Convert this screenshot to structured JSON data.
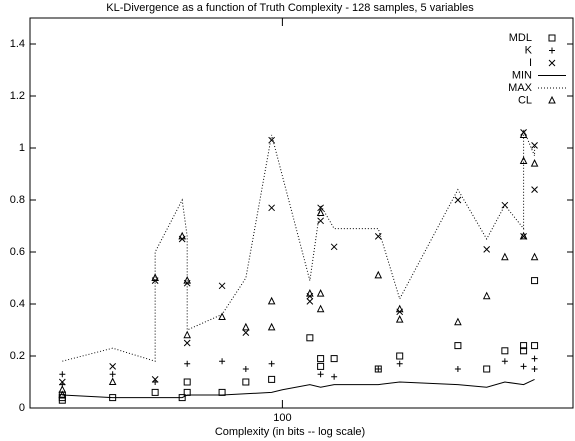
{
  "chart_data": {
    "type": "scatter",
    "title": "KL-Divergence as a function of Truth Complexity - 128 samples, 5 variables",
    "x_label": "Complexity (in bits -- log scale)",
    "xlim": [
      30,
      400
    ],
    "xscale": "log",
    "xticks": [
      100
    ],
    "ylim": [
      0,
      1.5
    ],
    "yticks": [
      0,
      0.2,
      0.4,
      0.6,
      0.8,
      1,
      1.2,
      1.4
    ],
    "legend": "top-right",
    "series": [
      {
        "name": "MDL",
        "marker": "square",
        "color": "#000000",
        "x": [
          35,
          35,
          35,
          44.5,
          54.5,
          62,
          63.5,
          63.5,
          75,
          84,
          95,
          114,
          120,
          120,
          128,
          158,
          175,
          231,
          265,
          289,
          316,
          316,
          333,
          333
        ],
        "values": [
          0.03,
          0.04,
          0.05,
          0.04,
          0.06,
          0.04,
          0.1,
          0.06,
          0.06,
          0.1,
          0.11,
          0.27,
          0.19,
          0.16,
          0.19,
          0.15,
          0.2,
          0.24,
          0.15,
          0.22,
          0.24,
          0.22,
          0.49,
          0.24
        ]
      },
      {
        "name": "K",
        "marker": "plus",
        "color": "#000000",
        "x": [
          35,
          35,
          44.5,
          54.5,
          63.5,
          75,
          84,
          95,
          120,
          128,
          158,
          175,
          231,
          289,
          316,
          333,
          333
        ],
        "values": [
          0.13,
          0.09,
          0.13,
          0.1,
          0.17,
          0.18,
          0.15,
          0.17,
          0.13,
          0.12,
          0.15,
          0.17,
          0.15,
          0.18,
          0.16,
          0.19,
          0.15
        ]
      },
      {
        "name": "I",
        "marker": "cross",
        "color": "#000000",
        "x": [
          35,
          44.5,
          54.5,
          54.5,
          62,
          63.5,
          63.5,
          75,
          84,
          95,
          95,
          114,
          114,
          120,
          120,
          128,
          158,
          175,
          231,
          265,
          289,
          316,
          316,
          333,
          333
        ],
        "values": [
          0.1,
          0.16,
          0.49,
          0.11,
          0.65,
          0.48,
          0.25,
          0.47,
          0.29,
          1.03,
          0.77,
          0.43,
          0.41,
          0.77,
          0.72,
          0.62,
          0.66,
          0.37,
          0.8,
          0.61,
          0.78,
          1.06,
          0.66,
          1.01,
          0.84
        ]
      },
      {
        "name": "MIN",
        "line": "solid",
        "color": "#000000",
        "x": [
          35,
          44.5,
          54.5,
          62,
          63.5,
          75,
          95,
          100,
          114,
          120,
          128,
          158,
          175,
          231,
          265,
          289,
          316,
          333
        ],
        "values": [
          0.05,
          0.04,
          0.04,
          0.04,
          0.05,
          0.05,
          0.06,
          0.07,
          0.09,
          0.08,
          0.09,
          0.09,
          0.1,
          0.09,
          0.08,
          0.1,
          0.09,
          0.11
        ]
      },
      {
        "name": "MAX",
        "line": "dotted",
        "color": "#000000",
        "x": [
          35,
          44.5,
          54.5,
          54.5,
          62,
          63.5,
          63.5,
          75,
          84,
          95,
          114,
          120,
          128,
          158,
          175,
          231,
          265,
          289,
          316,
          316,
          333,
          333
        ],
        "values": [
          0.18,
          0.23,
          0.18,
          0.6,
          0.8,
          0.66,
          0.3,
          0.36,
          0.5,
          1.05,
          0.49,
          0.78,
          0.69,
          0.69,
          0.42,
          0.84,
          0.65,
          0.78,
          0.69,
          1.07,
          0.97,
          1.01
        ]
      },
      {
        "name": "CL",
        "marker": "triangle",
        "color": "#000000",
        "x": [
          35,
          35,
          44.5,
          54.5,
          62,
          63.5,
          63.5,
          75,
          84,
          95,
          95,
          114,
          120,
          120,
          120,
          158,
          175,
          175,
          231,
          265,
          289,
          316,
          316,
          316,
          333,
          333
        ],
        "values": [
          0.07,
          0.05,
          0.1,
          0.5,
          0.66,
          0.49,
          0.28,
          0.35,
          0.31,
          0.41,
          0.31,
          0.44,
          0.75,
          0.44,
          0.38,
          0.51,
          0.38,
          0.34,
          0.33,
          0.43,
          0.58,
          1.05,
          0.95,
          0.66,
          0.94,
          0.58
        ]
      }
    ]
  }
}
